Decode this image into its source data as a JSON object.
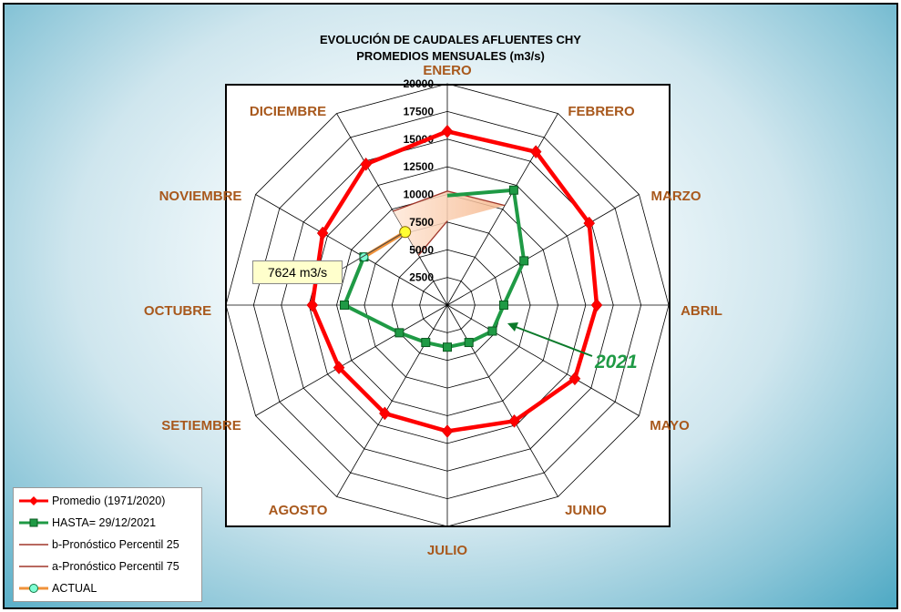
{
  "chart_data": {
    "type": "radar",
    "title": "EVOLUCIÓN DE CAUDALES AFLUENTES CHY",
    "subtitle": "PROMEDIOS MENSUALES (m3/s)",
    "categories": [
      "ENERO",
      "FEBRERO",
      "MARZO",
      "ABRIL",
      "MAYO",
      "JUNIO",
      "JULIO",
      "AGOSTO",
      "SETIEMBRE",
      "OCTUBRE",
      "NOVIEMBRE",
      "DICIEMBRE"
    ],
    "radial_ticks": [
      2500,
      5000,
      7500,
      10000,
      12500,
      15000,
      17500,
      20000
    ],
    "rmax": 20000,
    "grid": true,
    "series": [
      {
        "name": "Promedio (1971/2020)",
        "color": "#ff0000",
        "marker": "diamond",
        "values": [
          15700,
          16000,
          14800,
          13500,
          13300,
          12100,
          11400,
          11300,
          11300,
          12200,
          13000,
          14700
        ]
      },
      {
        "name": "HASTA= 29/12/2021",
        "color": "#1f9a45",
        "marker": "square",
        "values": [
          9900,
          12000,
          8000,
          5100,
          4700,
          3900,
          3800,
          3900,
          5000,
          9300,
          8700,
          null
        ]
      },
      {
        "name": "b-Pronóstico Percentil 25",
        "color": "#b5613f",
        "values": [
          7600,
          null,
          null,
          null,
          null,
          null,
          null,
          null,
          null,
          null,
          null,
          5200
        ]
      },
      {
        "name": "a-Pronóstico Percentil 75",
        "color": "#b5613f",
        "values": [
          10300,
          10400,
          null,
          null,
          null,
          null,
          null,
          null,
          null,
          null,
          null,
          9800
        ]
      },
      {
        "name": "ACTUAL",
        "color": "#f0923a",
        "marker": "circle",
        "values": [
          null,
          null,
          null,
          null,
          null,
          null,
          null,
          null,
          null,
          null,
          8700,
          7624
        ]
      }
    ],
    "annotation": {
      "text": "7624 m3/s",
      "value": 7624
    },
    "year_label": "2021",
    "legend_position": "bottom-left"
  }
}
